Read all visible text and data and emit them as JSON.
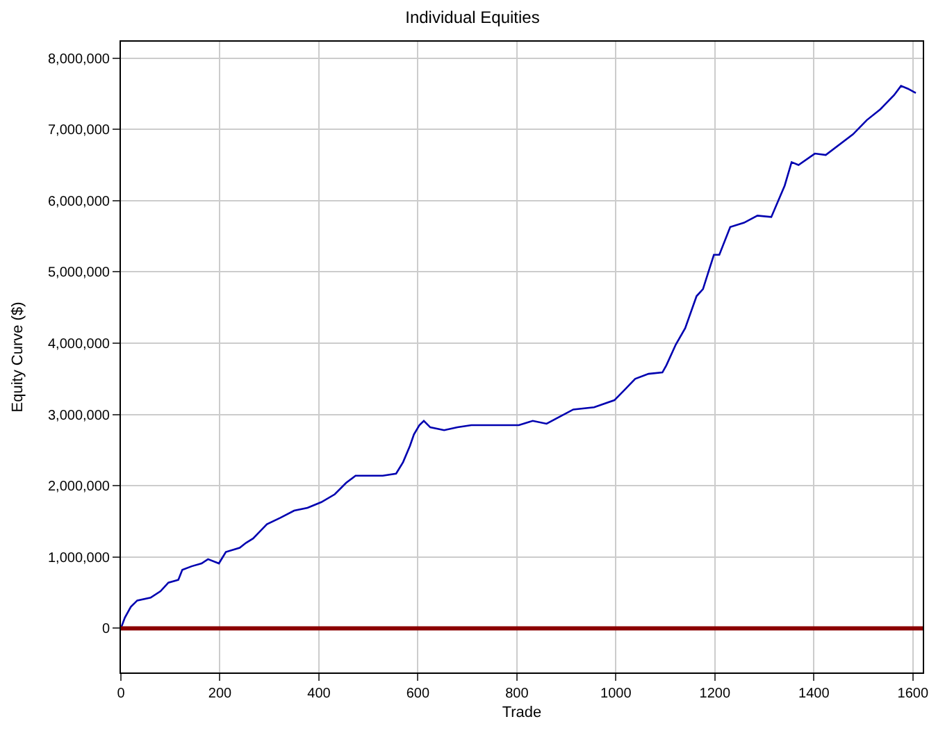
{
  "chart_data": {
    "type": "line",
    "title": "Individual Equities",
    "xlabel": "Trade",
    "ylabel": "Equity Curve ($)",
    "series": [
      {
        "color": "#0000b0",
        "x": [
          0,
          8,
          20,
          33,
          60,
          80,
          96,
          116,
          124,
          143,
          163,
          176,
          198,
          212,
          240,
          253,
          267,
          281,
          295,
          322,
          350,
          377,
          405,
          432,
          455,
          474,
          501,
          529,
          556,
          570,
          584,
          592,
          603,
          612,
          625,
          653,
          680,
          708,
          763,
          804,
          832,
          860,
          887,
          914,
          956,
          997,
          1017,
          1039,
          1066,
          1094,
          1102,
          1121,
          1140,
          1163,
          1176,
          1198,
          1209,
          1231,
          1259,
          1286,
          1314,
          1341,
          1355,
          1369,
          1402,
          1424,
          1479,
          1507,
          1534,
          1562,
          1576,
          1590,
          1606
        ],
        "values": [
          0,
          150000,
          300000,
          390000,
          430000,
          520000,
          640000,
          680000,
          820000,
          870000,
          910000,
          970000,
          910000,
          1070000,
          1130000,
          1200000,
          1260000,
          1360000,
          1460000,
          1550000,
          1650000,
          1690000,
          1770000,
          1880000,
          2040000,
          2140000,
          2140000,
          2140000,
          2170000,
          2330000,
          2560000,
          2720000,
          2850000,
          2910000,
          2820000,
          2780000,
          2820000,
          2850000,
          2850000,
          2850000,
          2910000,
          2870000,
          2970000,
          3070000,
          3100000,
          3200000,
          3340000,
          3500000,
          3570000,
          3590000,
          3690000,
          3980000,
          4210000,
          4660000,
          4760000,
          5240000,
          5240000,
          5630000,
          5690000,
          5790000,
          5770000,
          6210000,
          6540000,
          6500000,
          6660000,
          6640000,
          6930000,
          7130000,
          7280000,
          7480000,
          7610000,
          7570000,
          7510000
        ]
      }
    ],
    "ref_lines": [
      {
        "axis": "y",
        "value": 0,
        "color": "#8b0000"
      }
    ],
    "xlim": [
      0,
      1620
    ],
    "xticks": [
      0,
      200,
      400,
      600,
      800,
      1000,
      1200,
      1400,
      1600
    ],
    "ylim": [
      -620000,
      8230000
    ],
    "yticks": [
      {
        "value": 0,
        "label": "0"
      },
      {
        "value": 1000000,
        "label": "1,000,000"
      },
      {
        "value": 2000000,
        "label": "2,000,000"
      },
      {
        "value": 3000000,
        "label": "3,000,000"
      },
      {
        "value": 4000000,
        "label": "4,000,000"
      },
      {
        "value": 5000000,
        "label": "5,000,000"
      },
      {
        "value": 6000000,
        "label": "6,000,000"
      },
      {
        "value": 7000000,
        "label": "7,000,000"
      },
      {
        "value": 8000000,
        "label": "8,000,000"
      }
    ],
    "grid": true,
    "marker": "none",
    "line_style": "solid"
  }
}
